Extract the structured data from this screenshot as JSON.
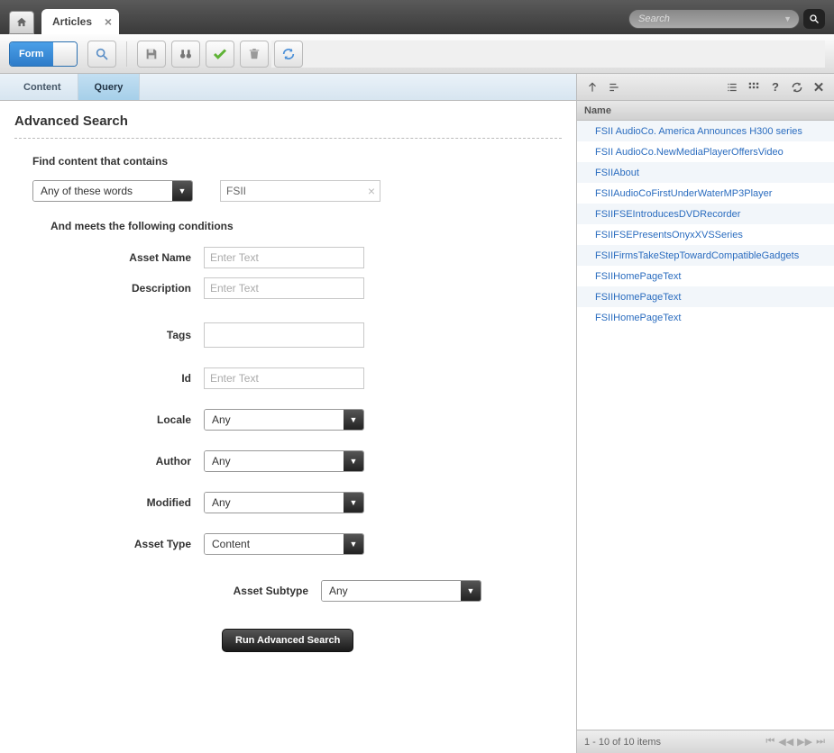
{
  "topbar": {
    "tab_label": "Articles",
    "search_placeholder": "Search"
  },
  "toolbar": {
    "form_label": "Form"
  },
  "subtabs": {
    "content": "Content",
    "query": "Query"
  },
  "form": {
    "title": "Advanced Search",
    "find_label": "Find content that contains",
    "match_mode": "Any of these words",
    "search_value": "FSII",
    "conditions_label": "And meets the following conditions",
    "fields": {
      "asset_name": {
        "label": "Asset Name",
        "placeholder": "Enter Text"
      },
      "description": {
        "label": "Description",
        "placeholder": "Enter Text"
      },
      "tags": {
        "label": "Tags"
      },
      "id": {
        "label": "Id",
        "placeholder": "Enter Text"
      },
      "locale": {
        "label": "Locale",
        "value": "Any"
      },
      "author": {
        "label": "Author",
        "value": "Any"
      },
      "modified": {
        "label": "Modified",
        "value": "Any"
      },
      "asset_type": {
        "label": "Asset Type",
        "value": "Content"
      },
      "asset_subtype": {
        "label": "Asset Subtype",
        "value": "Any"
      }
    },
    "run_button": "Run Advanced Search"
  },
  "results": {
    "header": "Name",
    "items": [
      "FSII AudioCo. America Announces H300 series",
      "FSII AudioCo.NewMediaPlayerOffersVideo",
      "FSIIAbout",
      "FSIIAudioCoFirstUnderWaterMP3Player",
      "FSIIFSEIntroducesDVDRecorder",
      "FSIIFSEPresentsOnyxXVSSeries",
      "FSIIFirmsTakeStepTowardCompatibleGadgets",
      "FSIIHomePageText",
      "FSIIHomePageText",
      "FSIIHomePageText"
    ],
    "footer": "1 - 10 of 10 items"
  },
  "colors": {
    "link": "#2a6cbf",
    "topbar_bg_top": "#5a5a5a",
    "topbar_bg_bottom": "#3a3a3a",
    "toolbar_bg_top": "#fdfdfd",
    "toolbar_bg_bottom": "#dcdcdc",
    "active_tab_bg": "#a6cfe9"
  }
}
